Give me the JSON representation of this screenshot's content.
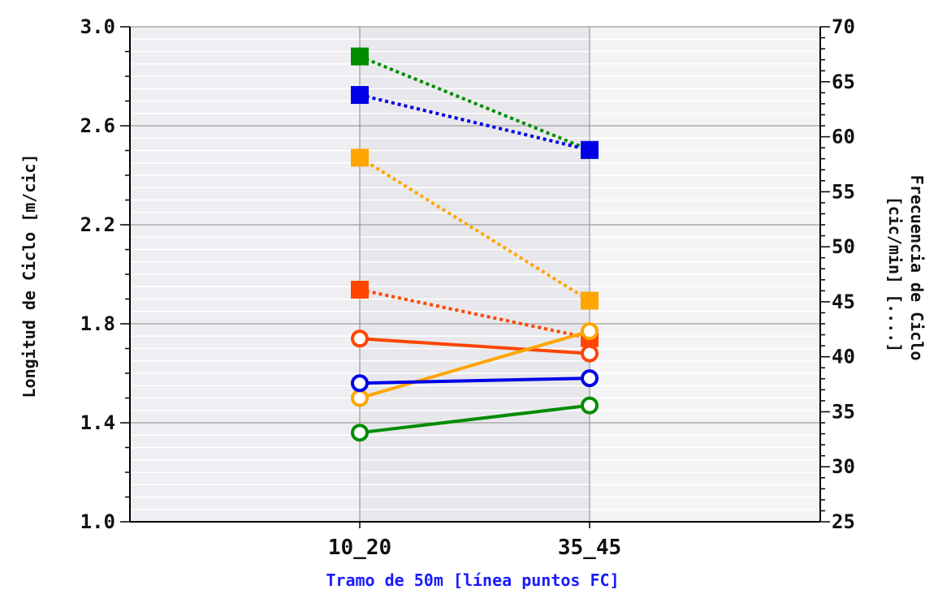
{
  "chart_data": {
    "type": "line",
    "categories": [
      "10_20",
      "35_45"
    ],
    "xlabel": "Tramo de 50m [línea puntos FC]",
    "xlabel_color": "#1a1aff",
    "ylabel_left": "Longitud de Ciclo [m/cic]",
    "ylabel_right_line1": "Frecuencia de Ciclo",
    "ylabel_right_line2": "[cic/min] [....]",
    "ylim_left": [
      1.0,
      3.0
    ],
    "ylim_right": [
      25,
      70
    ],
    "left_ticks": [
      "1.0",
      "1.4",
      "1.8",
      "2.2",
      "2.6",
      "3.0"
    ],
    "right_ticks": [
      "25",
      "30",
      "35",
      "40",
      "45",
      "50",
      "55",
      "60",
      "65",
      "70"
    ],
    "grid": true,
    "series": [
      {
        "axis": "left",
        "marker": "circle",
        "style": "solid",
        "color": "#ff4500",
        "values": [
          1.74,
          1.68
        ]
      },
      {
        "axis": "left",
        "marker": "circle",
        "style": "solid",
        "color": "#ffa500",
        "values": [
          1.5,
          1.77
        ]
      },
      {
        "axis": "left",
        "marker": "circle",
        "style": "solid",
        "color": "#0000e6",
        "values": [
          1.56,
          1.58
        ]
      },
      {
        "axis": "left",
        "marker": "circle",
        "style": "solid",
        "color": "#008c00",
        "values": [
          1.36,
          1.47
        ]
      },
      {
        "axis": "right",
        "marker": "square",
        "style": "dotted",
        "color": "#008c00",
        "values": [
          67.3,
          58.8
        ]
      },
      {
        "axis": "right",
        "marker": "square",
        "style": "dotted",
        "color": "#0000e6",
        "values": [
          63.8,
          58.8
        ]
      },
      {
        "axis": "right",
        "marker": "square",
        "style": "dotted",
        "color": "#ffa500",
        "values": [
          58.1,
          45.1
        ]
      },
      {
        "axis": "right",
        "marker": "square",
        "style": "dotted",
        "color": "#ff4500",
        "values": [
          46.1,
          41.7
        ]
      }
    ]
  }
}
